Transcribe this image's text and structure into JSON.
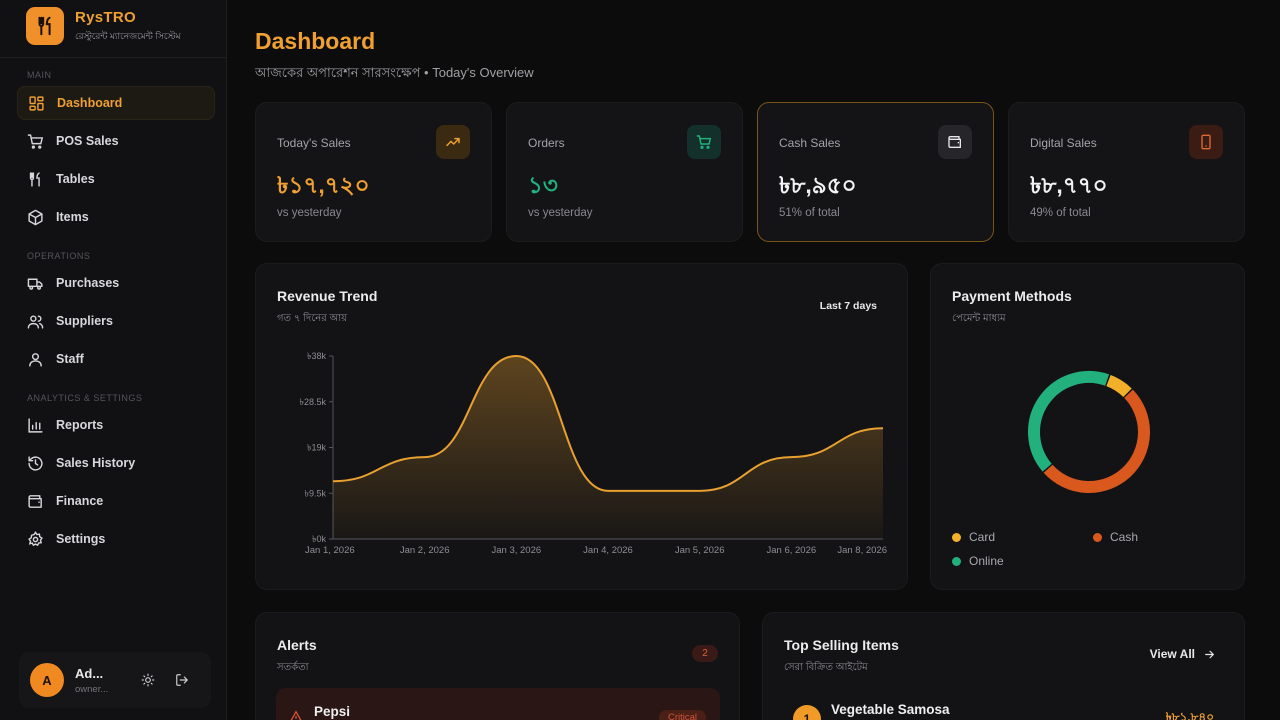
{
  "brand": {
    "name": "RysTRO",
    "subtitle": "রেস্টুরেন্ট ম্যানেজমেন্ট সিস্টেম"
  },
  "sidebar": {
    "sections": {
      "main": "MAIN",
      "operations": "OPERATIONS",
      "analytics": "ANALYTICS & SETTINGS"
    },
    "items": [
      {
        "label": "Dashboard",
        "icon": "grid-icon"
      },
      {
        "label": "POS Sales",
        "icon": "cart-icon"
      },
      {
        "label": "Tables",
        "icon": "utensils-icon"
      },
      {
        "label": "Items",
        "icon": "box-icon"
      },
      {
        "label": "Purchases",
        "icon": "truck-icon"
      },
      {
        "label": "Suppliers",
        "icon": "users-icon"
      },
      {
        "label": "Staff",
        "icon": "user-icon"
      },
      {
        "label": "Reports",
        "icon": "bar-chart-icon"
      },
      {
        "label": "Sales History",
        "icon": "history-icon"
      },
      {
        "label": "Finance",
        "icon": "wallet-icon"
      },
      {
        "label": "Settings",
        "icon": "gear-icon"
      }
    ]
  },
  "user": {
    "initial": "A",
    "name": "Ad...",
    "role": "owner..."
  },
  "header": {
    "title": "Dashboard",
    "subtitle": "আজকের অপারেশন সারসংক্ষেপ • Today's Overview"
  },
  "stats": [
    {
      "label": "Today's Sales",
      "value": "৳১৭,৭২০",
      "sub": "vs yesterday",
      "color": "#f0a030"
    },
    {
      "label": "Orders",
      "value": "১৩",
      "sub": "vs yesterday",
      "color": "#22b07d"
    },
    {
      "label": "Cash Sales",
      "value": "৳৮,৯৫০",
      "sub": "51% of total",
      "color": "#f2f2f4"
    },
    {
      "label": "Digital Sales",
      "value": "৳৮,৭৭০",
      "sub": "49% of total",
      "color": "#f2f2f4"
    }
  ],
  "revenue": {
    "title": "Revenue Trend",
    "subtitle": "গত ৭ দিনের আয়",
    "range_label": "Last 7 days"
  },
  "payment": {
    "title": "Payment Methods",
    "subtitle": "পেমেন্ট মাধ্যম",
    "legend": [
      {
        "label": "Card",
        "color": "#f2b02a"
      },
      {
        "label": "Cash",
        "color": "#d9581e"
      },
      {
        "label": "Online",
        "color": "#22b07d"
      }
    ]
  },
  "alerts": {
    "title": "Alerts",
    "subtitle": "সতর্কতা",
    "count": "2",
    "items": [
      {
        "name": "Pepsi",
        "level": "Critical"
      }
    ]
  },
  "top_selling": {
    "title": "Top Selling Items",
    "subtitle": "সেরা বিক্রিত আইটেম",
    "view_all": "View All",
    "items": [
      {
        "rank": "1",
        "name": "Vegetable Samosa",
        "price": "৳৮১,৮৪০"
      }
    ]
  },
  "chart_data": [
    {
      "type": "area",
      "title": "Revenue Trend",
      "x": [
        "Jan 1, 2026",
        "Jan 2, 2026",
        "Jan 3, 2026",
        "Jan 4, 2026",
        "Jan 5, 2026",
        "Jan 6, 2026",
        "Jan 8, 2026"
      ],
      "values": [
        12000,
        17000,
        38000,
        10000,
        10000,
        17000,
        23000
      ],
      "ylim": [
        0,
        38000
      ],
      "yticks": [
        "৳0k",
        "৳9.5k",
        "৳19k",
        "৳28.5k",
        "৳38k"
      ],
      "color": "#e8a030"
    },
    {
      "type": "pie",
      "title": "Payment Methods",
      "categories": [
        "Card",
        "Cash",
        "Online"
      ],
      "values": [
        7,
        51,
        42
      ],
      "colors": [
        "#f2b02a",
        "#d9581e",
        "#22b07d"
      ]
    }
  ]
}
